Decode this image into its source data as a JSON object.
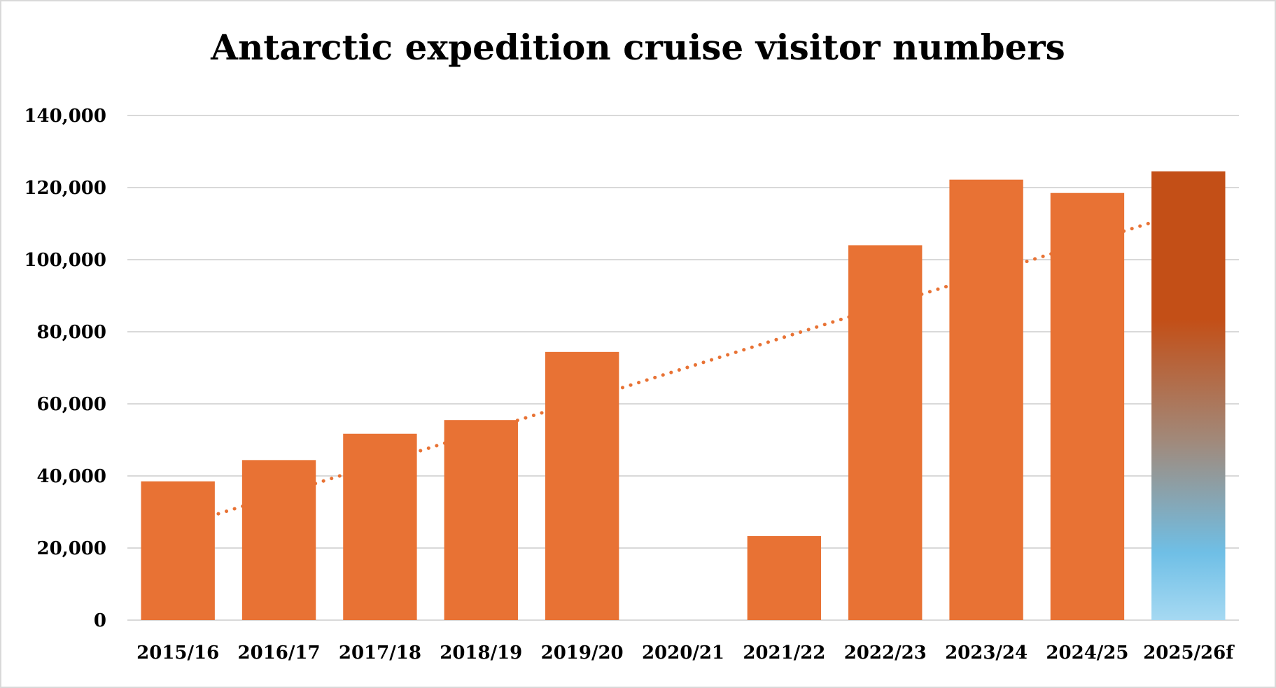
{
  "chart_data": {
    "type": "bar",
    "title": "Antarctic expedition cruise visitor numbers",
    "xlabel": "",
    "ylabel": "",
    "categories": [
      "2015/16",
      "2016/17",
      "2017/18",
      "2018/19",
      "2019/20",
      "2020/21",
      "2021/22",
      "2022/23",
      "2023/24",
      "2024/25",
      "2025/26f"
    ],
    "values": [
      38500,
      44400,
      51700,
      55500,
      74400,
      0,
      23300,
      104000,
      122200,
      118500,
      124500
    ],
    "ylim": [
      0,
      140000
    ],
    "yticks": [
      0,
      20000,
      40000,
      60000,
      80000,
      100000,
      120000,
      140000
    ],
    "ytick_labels": [
      "0",
      "20,000",
      "40,000",
      "60,000",
      "80,000",
      "100,000",
      "120,000",
      "140,000"
    ],
    "grid": true,
    "legend": "none",
    "trendline": {
      "type": "linear",
      "style": "dotted",
      "start": 26000,
      "end": 113500
    },
    "forecast_category": "2025/26f",
    "colors": {
      "bar": "#e87234",
      "forecast_top": "#c34f17",
      "forecast_mid": "#a1897a",
      "forecast_low": "#6fbfe6",
      "forecast_bottom": "#a6d9f2",
      "trendline": "#e87234",
      "grid": "#d9d9d9"
    }
  }
}
